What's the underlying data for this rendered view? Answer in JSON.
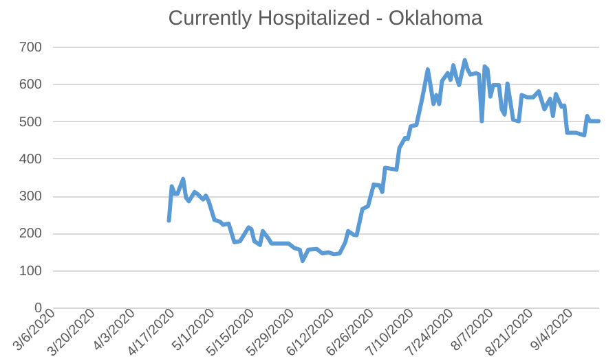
{
  "chart_data": {
    "type": "line",
    "title": "Currently Hospitalized - Oklahoma",
    "x": [
      "2020-04-16",
      "2020-04-17",
      "2020-04-18",
      "2020-04-19",
      "2020-04-21",
      "2020-04-22",
      "2020-04-23",
      "2020-04-25",
      "2020-04-26",
      "2020-04-28",
      "2020-04-29",
      "2020-04-30",
      "2020-05-02",
      "2020-05-04",
      "2020-05-05",
      "2020-05-07",
      "2020-05-09",
      "2020-05-11",
      "2020-05-14",
      "2020-05-15",
      "2020-05-16",
      "2020-05-18",
      "2020-05-19",
      "2020-05-21",
      "2020-05-22",
      "2020-05-25",
      "2020-05-28",
      "2020-05-30",
      "2020-06-01",
      "2020-06-02",
      "2020-06-04",
      "2020-06-07",
      "2020-06-09",
      "2020-06-11",
      "2020-06-13",
      "2020-06-15",
      "2020-06-17",
      "2020-06-18",
      "2020-06-20",
      "2020-06-21",
      "2020-06-23",
      "2020-06-25",
      "2020-06-27",
      "2020-06-29",
      "2020-06-30",
      "2020-07-01",
      "2020-07-05",
      "2020-07-06",
      "2020-07-08",
      "2020-07-09",
      "2020-07-10",
      "2020-07-12",
      "2020-07-13",
      "2020-07-14",
      "2020-07-16",
      "2020-07-17",
      "2020-07-18",
      "2020-07-19",
      "2020-07-20",
      "2020-07-21",
      "2020-07-23",
      "2020-07-24",
      "2020-07-25",
      "2020-07-26",
      "2020-07-27",
      "2020-07-29",
      "2020-07-30",
      "2020-07-31",
      "2020-08-02",
      "2020-08-03",
      "2020-08-04",
      "2020-08-05",
      "2020-08-06",
      "2020-08-07",
      "2020-08-08",
      "2020-08-10",
      "2020-08-11",
      "2020-08-12",
      "2020-08-13",
      "2020-08-14",
      "2020-08-15",
      "2020-08-17",
      "2020-08-18",
      "2020-08-20",
      "2020-08-22",
      "2020-08-24",
      "2020-08-26",
      "2020-08-28",
      "2020-08-29",
      "2020-08-30",
      "2020-09-01",
      "2020-09-02",
      "2020-09-03",
      "2020-09-06",
      "2020-09-09",
      "2020-09-10",
      "2020-09-11",
      "2020-09-14"
    ],
    "series": [
      {
        "color": "#5b9bd5",
        "values": [
          233,
          325,
          305,
          305,
          345,
          295,
          285,
          310,
          305,
          290,
          300,
          285,
          235,
          230,
          222,
          225,
          175,
          178,
          215,
          210,
          178,
          168,
          205,
          185,
          172,
          172,
          172,
          160,
          155,
          125,
          155,
          157,
          145,
          148,
          143,
          145,
          175,
          205,
          195,
          194,
          264,
          272,
          330,
          328,
          310,
          375,
          370,
          428,
          455,
          453,
          486,
          490,
          525,
          560,
          639,
          594,
          546,
          570,
          546,
          608,
          629,
          611,
          650,
          619,
          597,
          664,
          639,
          625,
          629,
          625,
          500,
          647,
          639,
          566,
          597,
          597,
          532,
          518,
          601,
          553,
          504,
          500,
          570,
          564,
          564,
          580,
          532,
          560,
          514,
          573,
          539,
          542,
          469,
          469,
          462,
          514,
          500,
          500
        ]
      }
    ],
    "xlim": [
      "2020-03-06",
      "2020-09-14"
    ],
    "xticks": [
      {
        "value": "2020-03-06",
        "label": "3/6/2020"
      },
      {
        "value": "2020-03-20",
        "label": "3/20/2020"
      },
      {
        "value": "2020-04-03",
        "label": "4/3/2020"
      },
      {
        "value": "2020-04-17",
        "label": "4/17/2020"
      },
      {
        "value": "2020-05-01",
        "label": "5/1/2020"
      },
      {
        "value": "2020-05-15",
        "label": "5/15/2020"
      },
      {
        "value": "2020-05-29",
        "label": "5/29/2020"
      },
      {
        "value": "2020-06-12",
        "label": "6/12/2020"
      },
      {
        "value": "2020-06-26",
        "label": "6/26/2020"
      },
      {
        "value": "2020-07-10",
        "label": "7/10/2020"
      },
      {
        "value": "2020-07-24",
        "label": "7/24/2020"
      },
      {
        "value": "2020-08-07",
        "label": "8/7/2020"
      },
      {
        "value": "2020-08-21",
        "label": "8/21/2020"
      },
      {
        "value": "2020-09-04",
        "label": "9/4/2020"
      }
    ],
    "ylim": [
      0,
      700
    ],
    "yticks": [
      0,
      100,
      200,
      300,
      400,
      500,
      600,
      700
    ],
    "grid": "y",
    "marker": "none",
    "line_style": "solid"
  }
}
